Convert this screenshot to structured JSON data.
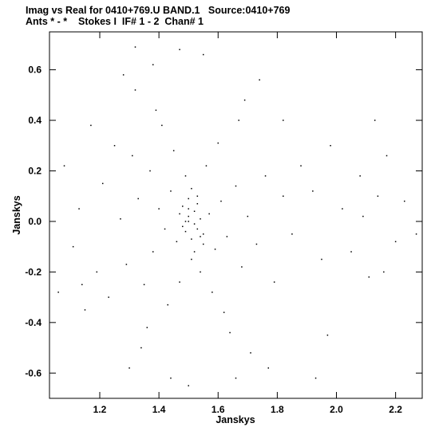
{
  "header": {
    "line1": "Imag vs Real for 0410+769.U BAND.1   Source:0410+769",
    "line2": "Ants * - *    Stokes I  IF# 1 - 2  Chan# 1"
  },
  "chart_data": {
    "type": "scatter",
    "title": "Imag vs Real for 0410+769.U BAND.1   Source:0410+769",
    "subtitle": "Ants * - *    Stokes I  IF# 1 - 2  Chan# 1",
    "xlabel": "Janskys",
    "ylabel": "Janskys",
    "xlim": [
      1.03,
      2.29
    ],
    "ylim": [
      -0.7,
      0.75
    ],
    "xticks": [
      1.2,
      1.4,
      1.6,
      1.8,
      2.0,
      2.2
    ],
    "xtick_labels": [
      "1.2",
      "1.4",
      "1.6",
      "1.8",
      "2.0",
      "2.2"
    ],
    "yticks": [
      -0.6,
      -0.4,
      -0.2,
      0.0,
      0.2,
      0.4,
      0.6
    ],
    "ytick_labels": [
      "-0.6",
      "-0.4",
      "-0.2",
      "0.0",
      "0.2",
      "0.4",
      "0.6"
    ],
    "grid": false,
    "marker_color": "#000000",
    "points": [
      [
        1.52,
        -0.01
      ],
      [
        1.5,
        0.02
      ],
      [
        1.55,
        -0.05
      ],
      [
        1.48,
        0.06
      ],
      [
        1.53,
        0.1
      ],
      [
        1.46,
        -0.08
      ],
      [
        1.57,
        0.03
      ],
      [
        1.51,
        -0.15
      ],
      [
        1.44,
        0.12
      ],
      [
        1.59,
        -0.11
      ],
      [
        1.49,
        0.18
      ],
      [
        1.54,
        -0.2
      ],
      [
        1.42,
        -0.03
      ],
      [
        1.61,
        0.08
      ],
      [
        1.47,
        -0.24
      ],
      [
        1.56,
        0.22
      ],
      [
        1.4,
        0.05
      ],
      [
        1.63,
        -0.06
      ],
      [
        1.45,
        0.28
      ],
      [
        1.58,
        -0.28
      ],
      [
        1.38,
        -0.12
      ],
      [
        1.66,
        0.14
      ],
      [
        1.43,
        -0.33
      ],
      [
        1.6,
        0.31
      ],
      [
        1.37,
        0.2
      ],
      [
        1.68,
        -0.18
      ],
      [
        1.41,
        0.38
      ],
      [
        1.62,
        -0.36
      ],
      [
        1.35,
        -0.25
      ],
      [
        1.7,
        0.02
      ],
      [
        1.39,
        0.44
      ],
      [
        1.64,
        -0.44
      ],
      [
        1.33,
        0.09
      ],
      [
        1.73,
        -0.09
      ],
      [
        1.36,
        -0.42
      ],
      [
        1.67,
        0.4
      ],
      [
        1.31,
        0.26
      ],
      [
        1.76,
        0.18
      ],
      [
        1.34,
        -0.5
      ],
      [
        1.69,
        0.48
      ],
      [
        1.29,
        -0.17
      ],
      [
        1.79,
        -0.24
      ],
      [
        1.32,
        0.52
      ],
      [
        1.71,
        -0.52
      ],
      [
        1.27,
        0.01
      ],
      [
        1.82,
        0.1
      ],
      [
        1.3,
        -0.58
      ],
      [
        1.74,
        0.56
      ],
      [
        1.25,
        0.3
      ],
      [
        1.85,
        -0.05
      ],
      [
        1.28,
        0.58
      ],
      [
        1.77,
        -0.58
      ],
      [
        1.23,
        -0.3
      ],
      [
        1.88,
        0.22
      ],
      [
        1.47,
        0.68
      ],
      [
        1.44,
        -0.62
      ],
      [
        1.21,
        0.15
      ],
      [
        1.92,
        0.12
      ],
      [
        1.19,
        -0.2
      ],
      [
        1.95,
        -0.15
      ],
      [
        1.17,
        0.38
      ],
      [
        1.98,
        0.3
      ],
      [
        1.15,
        -0.35
      ],
      [
        2.02,
        0.05
      ],
      [
        1.13,
        0.05
      ],
      [
        2.05,
        -0.12
      ],
      [
        1.11,
        -0.1
      ],
      [
        2.08,
        0.18
      ],
      [
        1.08,
        0.22
      ],
      [
        2.11,
        -0.22
      ],
      [
        1.06,
        -0.28
      ],
      [
        2.14,
        0.1
      ],
      [
        2.17,
        0.26
      ],
      [
        2.2,
        -0.08
      ],
      [
        2.23,
        0.08
      ],
      [
        2.27,
        -0.05
      ],
      [
        2.13,
        0.4
      ],
      [
        2.16,
        -0.2
      ],
      [
        1.97,
        -0.45
      ],
      [
        1.93,
        -0.62
      ],
      [
        1.82,
        0.4
      ],
      [
        2.09,
        0.02
      ],
      [
        1.32,
        0.69
      ],
      [
        1.38,
        0.62
      ],
      [
        1.55,
        0.66
      ],
      [
        1.5,
        -0.65
      ],
      [
        1.66,
        -0.62
      ],
      [
        1.14,
        -0.25
      ],
      [
        1.5,
        0.0
      ],
      [
        1.52,
        0.04
      ],
      [
        1.49,
        -0.04
      ],
      [
        1.54,
        0.01
      ],
      [
        1.51,
        -0.07
      ],
      [
        1.53,
        0.07
      ],
      [
        1.48,
        -0.02
      ],
      [
        1.5,
        0.09
      ],
      [
        1.55,
        -0.09
      ],
      [
        1.47,
        0.03
      ],
      [
        1.52,
        -0.12
      ],
      [
        1.51,
        0.13
      ],
      [
        1.49,
        0.0
      ],
      [
        1.53,
        -0.03
      ],
      [
        1.5,
        0.05
      ],
      [
        1.54,
        -0.06
      ]
    ]
  }
}
